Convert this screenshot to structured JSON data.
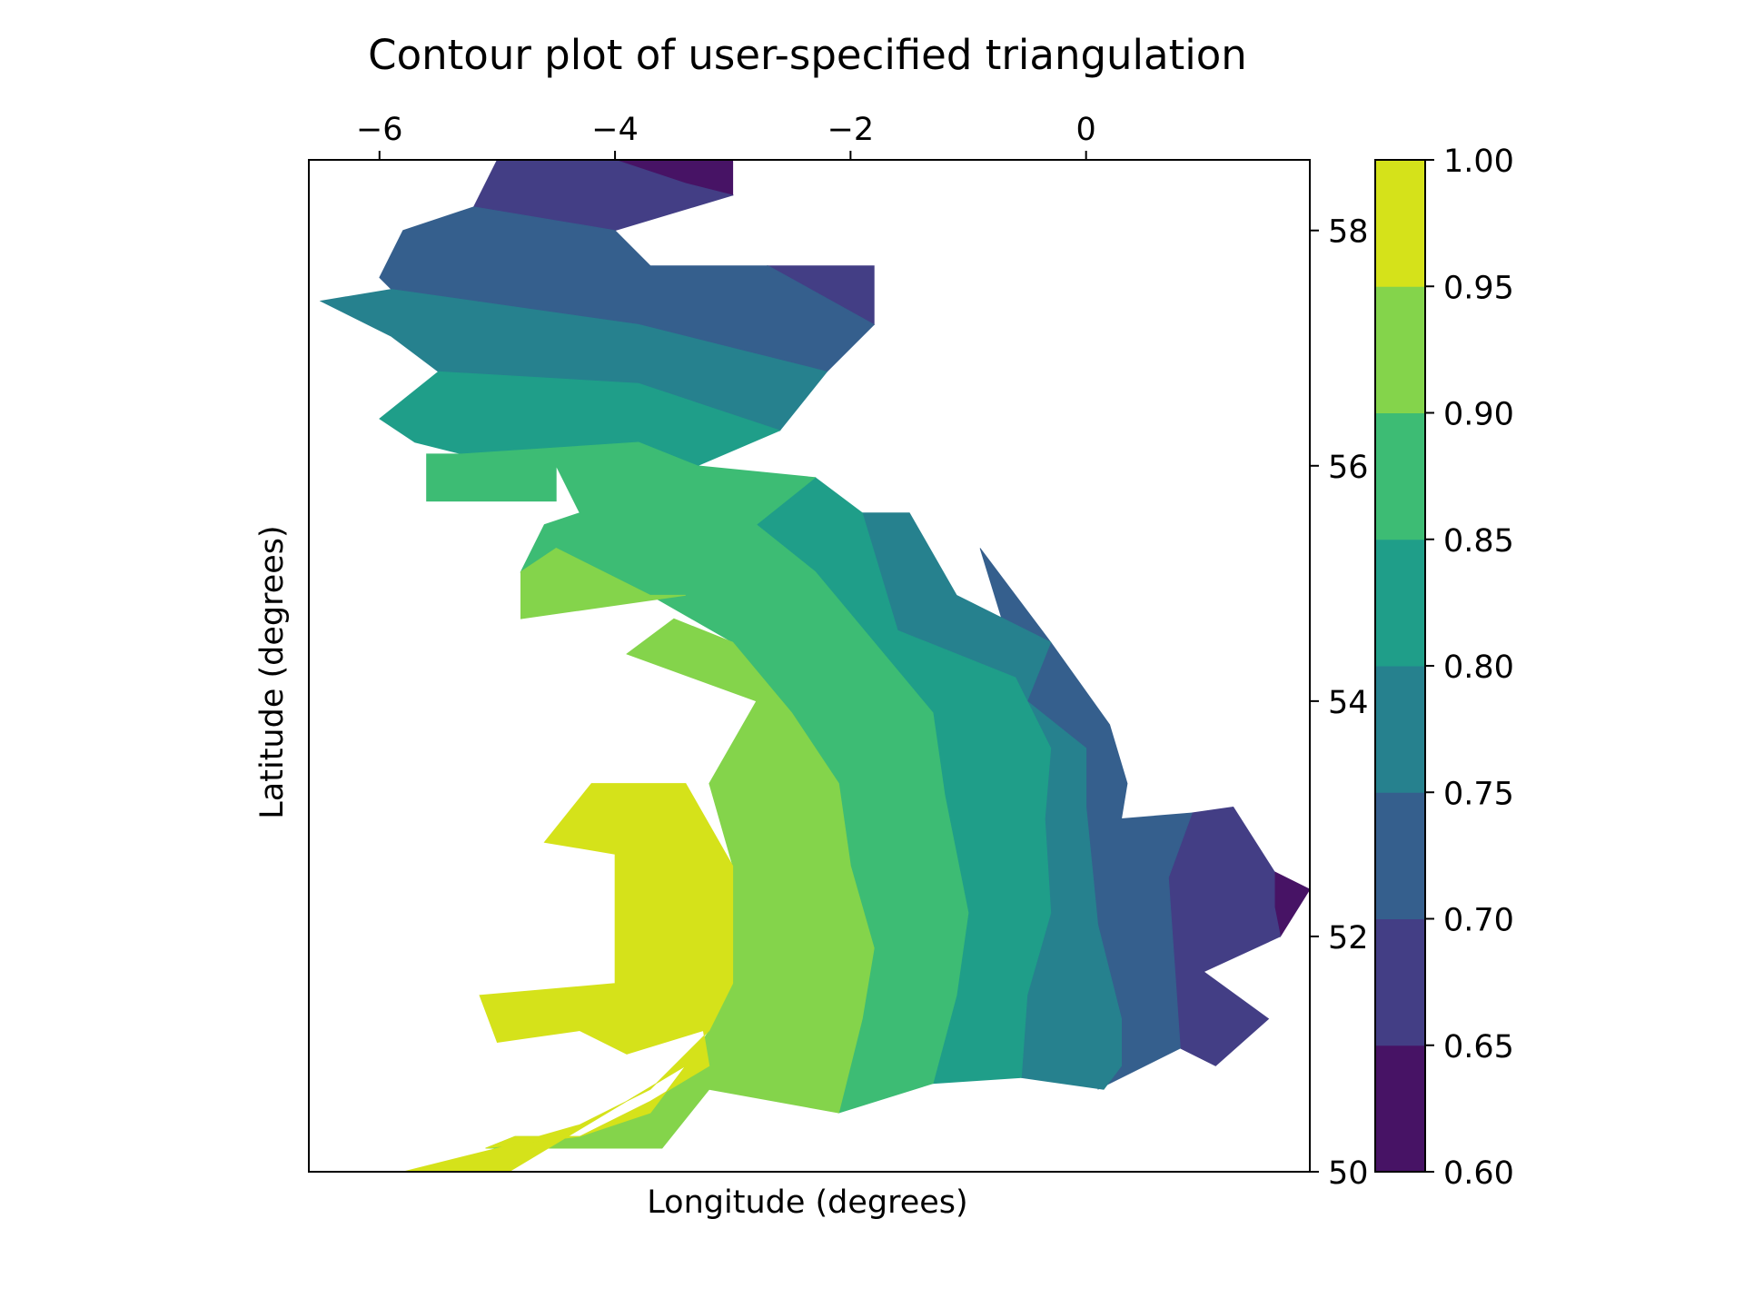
{
  "chart_data": {
    "type": "contourf",
    "title": "Contour plot of user-specified triangulation",
    "xlabel": "Longitude (degrees)",
    "ylabel": "Latitude (degrees)",
    "xlim": [
      -6.6,
      1.9
    ],
    "ylim": [
      50.0,
      58.6
    ],
    "x_ticks": [
      -6,
      -4,
      -2,
      0
    ],
    "x_tick_labels": [
      "−6",
      "−4",
      "−2",
      "0"
    ],
    "x_axis_position": "top",
    "y_ticks": [
      50,
      52,
      54,
      56,
      58
    ],
    "y_tick_labels": [
      "50",
      "52",
      "54",
      "56",
      "58"
    ],
    "y_axis_position": "right",
    "grid": false,
    "colormap": "viridis",
    "levels": [
      0.6,
      0.65,
      0.7,
      0.75,
      0.8,
      0.85,
      0.9,
      0.95,
      1.0
    ],
    "level_labels": [
      "0.60",
      "0.65",
      "0.70",
      "0.75",
      "0.80",
      "0.85",
      "0.90",
      "0.95",
      "1.00"
    ],
    "band_colors": [
      "#471365",
      "#433e85",
      "#355f8d",
      "#26818e",
      "#1f9e89",
      "#3dbc74",
      "#84d44b",
      "#d5e21a"
    ],
    "colorbar": {
      "position": "right",
      "range": [
        0.6,
        1.0
      ]
    },
    "description_of_field": "value increases from about 0.6 in the north/east toward 1.0 in the south-west",
    "outline_points": [
      [
        -5.0,
        58.6
      ],
      [
        -3.0,
        58.6
      ],
      [
        -3.0,
        58.3
      ],
      [
        -4.0,
        58.0
      ],
      [
        -3.7,
        57.7
      ],
      [
        -1.8,
        57.7
      ],
      [
        -1.8,
        57.2
      ],
      [
        -2.2,
        56.8
      ],
      [
        -2.6,
        56.3
      ],
      [
        -3.3,
        56.0
      ],
      [
        -2.3,
        55.9
      ],
      [
        -1.5,
        55.6
      ],
      [
        -1.1,
        54.9
      ],
      [
        -0.3,
        54.5
      ],
      [
        0.2,
        53.8
      ],
      [
        0.35,
        53.3
      ],
      [
        0.3,
        53.0
      ],
      [
        1.25,
        53.1
      ],
      [
        1.9,
        52.4
      ],
      [
        1.6,
        52.0
      ],
      [
        1.0,
        51.7
      ],
      [
        1.55,
        51.3
      ],
      [
        1.1,
        50.9
      ],
      [
        0.15,
        50.7
      ],
      [
        -0.55,
        50.75
      ],
      [
        -1.3,
        50.75
      ],
      [
        -2.1,
        50.5
      ],
      [
        -3.2,
        50.7
      ],
      [
        -3.6,
        50.2
      ],
      [
        -5.1,
        50.2
      ],
      [
        -5.8,
        50.0
      ],
      [
        -4.9,
        50.0
      ],
      [
        -3.2,
        51.2
      ],
      [
        -3.9,
        51.0
      ],
      [
        -4.3,
        51.2
      ],
      [
        -5.0,
        51.1
      ],
      [
        -5.15,
        51.5
      ],
      [
        -4.0,
        51.6
      ],
      [
        -4.0,
        52.7
      ],
      [
        -4.6,
        52.8
      ],
      [
        -4.2,
        53.3
      ],
      [
        -3.0,
        53.4
      ],
      [
        -2.8,
        54.0
      ],
      [
        -3.9,
        54.4
      ],
      [
        -3.4,
        54.9
      ],
      [
        -4.8,
        54.7
      ],
      [
        -4.8,
        55.1
      ],
      [
        -4.3,
        55.6
      ],
      [
        -4.5,
        56.0
      ],
      [
        -4.5,
        55.7
      ],
      [
        -5.6,
        55.7
      ],
      [
        -5.6,
        56.3
      ],
      [
        -5.3,
        56.4
      ],
      [
        -4.0,
        56.5
      ],
      [
        -4.3,
        56.2
      ],
      [
        -4.9,
        56.8
      ],
      [
        -6.0,
        57.3
      ],
      [
        -6.5,
        57.1
      ],
      [
        -5.6,
        57.3
      ],
      [
        -6.0,
        57.6
      ],
      [
        -6.4,
        57.9
      ],
      [
        -5.8,
        58.0
      ],
      [
        -5.2,
        58.2
      ]
    ],
    "band_regions": [
      {
        "level_band": "0.60-0.65",
        "points": [
          [
            -4.0,
            58.6
          ],
          [
            -3.0,
            58.6
          ],
          [
            -3.0,
            58.3
          ],
          [
            -3.4,
            58.4
          ]
        ]
      },
      {
        "level_band": "0.60-0.65",
        "points": [
          [
            1.6,
            52.55
          ],
          [
            1.9,
            52.4
          ],
          [
            1.65,
            52.0
          ],
          [
            1.6,
            52.25
          ]
        ]
      },
      {
        "level_band": "0.65-0.70",
        "points": [
          [
            -5.0,
            58.6
          ],
          [
            -4.0,
            58.6
          ],
          [
            -3.4,
            58.4
          ],
          [
            -3.0,
            58.3
          ],
          [
            -4.0,
            58.0
          ],
          [
            -5.2,
            58.2
          ]
        ]
      },
      {
        "level_band": "0.65-0.70",
        "points": [
          [
            -2.7,
            57.7
          ],
          [
            -1.8,
            57.7
          ],
          [
            -1.8,
            57.2
          ]
        ]
      },
      {
        "level_band": "0.65-0.70",
        "points": [
          [
            0.9,
            53.05
          ],
          [
            1.25,
            53.1
          ],
          [
            1.6,
            52.55
          ],
          [
            1.6,
            52.25
          ],
          [
            1.65,
            52.0
          ],
          [
            1.0,
            51.7
          ],
          [
            1.55,
            51.3
          ],
          [
            1.1,
            50.9
          ],
          [
            0.8,
            51.05
          ],
          [
            0.7,
            52.5
          ]
        ]
      },
      {
        "level_band": "0.70-0.75",
        "points": [
          [
            -5.2,
            58.2
          ],
          [
            -4.0,
            58.0
          ],
          [
            -3.7,
            57.7
          ],
          [
            -2.7,
            57.7
          ],
          [
            -1.8,
            57.2
          ],
          [
            -2.2,
            56.8
          ],
          [
            -3.8,
            57.2
          ],
          [
            -5.9,
            57.5
          ],
          [
            -6.0,
            57.6
          ],
          [
            -5.8,
            58.0
          ]
        ]
      },
      {
        "level_band": "0.70-0.75",
        "points": [
          [
            -0.9,
            55.3
          ],
          [
            -0.3,
            54.5
          ],
          [
            0.2,
            53.8
          ],
          [
            0.35,
            53.3
          ],
          [
            0.3,
            53.0
          ],
          [
            0.9,
            53.05
          ],
          [
            0.7,
            52.5
          ],
          [
            0.8,
            51.05
          ],
          [
            0.1,
            50.7
          ],
          [
            0.3,
            50.9
          ],
          [
            0.3,
            51.3
          ],
          [
            0.1,
            52.1
          ],
          [
            0.05,
            52.6
          ],
          [
            0.0,
            53.1
          ],
          [
            0.0,
            53.6
          ],
          [
            -0.5,
            54.0
          ]
        ]
      },
      {
        "level_band": "0.75-0.80",
        "points": [
          [
            -6.5,
            57.4
          ],
          [
            -5.9,
            57.5
          ],
          [
            -3.8,
            57.2
          ],
          [
            -2.2,
            56.8
          ],
          [
            -2.6,
            56.3
          ],
          [
            -3.8,
            56.7
          ],
          [
            -5.5,
            56.8
          ],
          [
            -5.9,
            57.1
          ]
        ]
      },
      {
        "level_band": "0.75-0.80",
        "points": [
          [
            -1.9,
            55.6
          ],
          [
            -1.5,
            55.6
          ],
          [
            -1.1,
            54.9
          ],
          [
            -0.3,
            54.5
          ],
          [
            -0.5,
            54.0
          ],
          [
            -1.6,
            54.6
          ]
        ]
      },
      {
        "level_band": "0.75-0.80",
        "points": [
          [
            -0.6,
            54.2
          ],
          [
            -0.5,
            54.0
          ],
          [
            0.0,
            53.6
          ],
          [
            0.0,
            53.1
          ],
          [
            0.05,
            52.6
          ],
          [
            0.1,
            52.1
          ],
          [
            0.3,
            51.3
          ],
          [
            0.3,
            50.9
          ],
          [
            0.15,
            50.7
          ],
          [
            -0.55,
            50.8
          ],
          [
            -0.5,
            51.5
          ],
          [
            -0.3,
            52.2
          ],
          [
            -0.35,
            53.0
          ],
          [
            -0.3,
            53.6
          ]
        ]
      },
      {
        "level_band": "0.80-0.85",
        "points": [
          [
            -6.0,
            56.4
          ],
          [
            -5.5,
            56.8
          ],
          [
            -3.8,
            56.7
          ],
          [
            -2.6,
            56.3
          ],
          [
            -3.3,
            56.0
          ],
          [
            -3.8,
            56.2
          ],
          [
            -5.3,
            56.1
          ],
          [
            -5.7,
            56.2
          ]
        ]
      },
      {
        "level_band": "0.80-0.85",
        "points": [
          [
            -2.3,
            55.9
          ],
          [
            -1.9,
            55.6
          ],
          [
            -1.6,
            54.6
          ],
          [
            -0.6,
            54.2
          ],
          [
            -0.3,
            53.6
          ],
          [
            -0.35,
            53.0
          ],
          [
            -0.3,
            52.2
          ],
          [
            -0.5,
            51.5
          ],
          [
            -0.55,
            50.8
          ],
          [
            -1.3,
            50.75
          ],
          [
            -1.1,
            51.5
          ],
          [
            -1.0,
            52.2
          ],
          [
            -1.2,
            53.2
          ],
          [
            -1.3,
            53.9
          ],
          [
            -2.3,
            55.1
          ],
          [
            -2.8,
            55.5
          ]
        ]
      },
      {
        "level_band": "0.85-0.90",
        "points": [
          [
            -5.6,
            56.1
          ],
          [
            -5.3,
            56.1
          ],
          [
            -3.8,
            56.2
          ],
          [
            -3.3,
            56.0
          ],
          [
            -2.3,
            55.9
          ],
          [
            -2.8,
            55.5
          ],
          [
            -2.3,
            55.1
          ],
          [
            -1.3,
            53.9
          ],
          [
            -1.2,
            53.2
          ],
          [
            -1.0,
            52.2
          ],
          [
            -1.1,
            51.5
          ],
          [
            -1.3,
            50.75
          ],
          [
            -2.1,
            50.5
          ],
          [
            -1.9,
            51.3
          ],
          [
            -1.8,
            51.9
          ],
          [
            -2.0,
            52.6
          ],
          [
            -2.1,
            53.3
          ],
          [
            -2.5,
            53.9
          ],
          [
            -3.0,
            54.5
          ],
          [
            -3.7,
            54.9
          ],
          [
            -4.5,
            55.3
          ],
          [
            -4.8,
            55.1
          ],
          [
            -4.6,
            55.5
          ],
          [
            -4.3,
            55.6
          ],
          [
            -4.5,
            56.0
          ],
          [
            -4.5,
            55.7
          ],
          [
            -5.6,
            55.7
          ]
        ]
      },
      {
        "level_band": "0.90-0.95",
        "points": [
          [
            -4.8,
            55.1
          ],
          [
            -4.5,
            55.3
          ],
          [
            -3.7,
            54.9
          ],
          [
            -3.4,
            54.9
          ],
          [
            -4.8,
            54.7
          ]
        ]
      },
      {
        "level_band": "0.90-0.95",
        "points": [
          [
            -3.9,
            54.4
          ],
          [
            -3.5,
            54.7
          ],
          [
            -3.0,
            54.5
          ],
          [
            -2.5,
            53.9
          ],
          [
            -2.1,
            53.3
          ],
          [
            -2.0,
            52.6
          ],
          [
            -1.8,
            51.9
          ],
          [
            -1.9,
            51.3
          ],
          [
            -2.1,
            50.5
          ],
          [
            -3.2,
            50.7
          ],
          [
            -3.6,
            50.2
          ],
          [
            -5.1,
            50.2
          ],
          [
            -4.85,
            50.3
          ],
          [
            -4.3,
            50.3
          ],
          [
            -3.7,
            50.5
          ],
          [
            -3.4,
            50.9
          ],
          [
            -3.2,
            51.2
          ],
          [
            -3.0,
            51.6
          ],
          [
            -3.0,
            52.6
          ],
          [
            -3.2,
            53.3
          ],
          [
            -2.8,
            54.0
          ]
        ]
      },
      {
        "level_band": "0.95-1.00",
        "points": [
          [
            -5.8,
            50.0
          ],
          [
            -4.9,
            50.0
          ],
          [
            -3.4,
            50.9
          ],
          [
            -3.7,
            50.5
          ],
          [
            -4.3,
            50.3
          ],
          [
            -4.85,
            50.3
          ],
          [
            -5.1,
            50.2
          ],
          [
            -4.3,
            50.3
          ],
          [
            -3.7,
            50.6
          ],
          [
            -3.2,
            50.9
          ],
          [
            -3.25,
            51.2
          ],
          [
            -3.9,
            51.0
          ],
          [
            -4.3,
            51.2
          ],
          [
            -5.0,
            51.1
          ],
          [
            -5.15,
            51.5
          ],
          [
            -4.0,
            51.6
          ],
          [
            -4.0,
            52.7
          ],
          [
            -4.6,
            52.8
          ],
          [
            -4.2,
            53.3
          ],
          [
            -3.4,
            53.3
          ],
          [
            -3.0,
            52.6
          ],
          [
            -3.0,
            51.6
          ],
          [
            -3.2,
            51.2
          ],
          [
            -3.7,
            50.7
          ],
          [
            -4.3,
            50.4
          ],
          [
            -5.0,
            50.2
          ]
        ]
      }
    ]
  }
}
